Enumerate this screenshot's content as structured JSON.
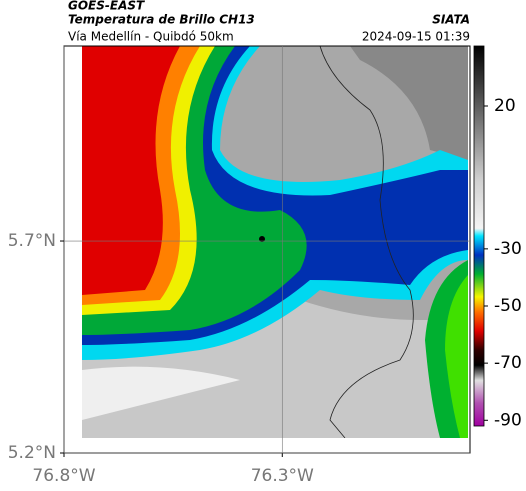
{
  "header": {
    "source": "GOES-EAST",
    "title": "Temperatura de Brillo CH13",
    "brand": "SIATA",
    "subtitle": "Vía Medellín - Quibdó 50km",
    "datetime": "2024-09-15 01:39"
  },
  "map": {
    "xlim": [
      -76.8,
      -75.87
    ],
    "ylim": [
      5.2,
      6.16
    ],
    "xticks": [
      {
        "value": -76.8,
        "label": "76.8°W"
      },
      {
        "value": -76.3,
        "label": "76.3°W"
      }
    ],
    "yticks": [
      {
        "value": 5.2,
        "label": "5.2°N"
      },
      {
        "value": 5.7,
        "label": "5.7°N"
      }
    ]
  },
  "colorbar": {
    "lim": [
      -92,
      41
    ],
    "ticks": [
      20,
      -30,
      -50,
      -70,
      -90
    ]
  }
}
